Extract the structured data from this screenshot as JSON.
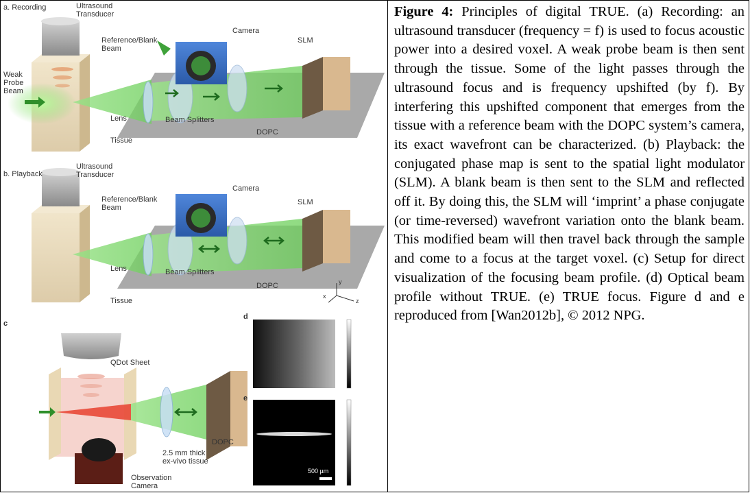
{
  "caption": {
    "label": "Figure 4:",
    "text": " Principles of digital TRUE. (a) Recording: an ultrasound transducer (frequency = f) is used to focus acoustic power into a desired voxel. A weak probe beam is then sent through the tissue. Some of the light passes through the ultrasound focus and is frequency upshifted (by f). By interfering this upshifted component that emerges from the tissue with a reference beam with the DOPC system’s camera, its exact wavefront can be characterized. (b) Playback: the conjugated phase map is sent to the spatial light modulator (SLM). A blank beam is then sent to the SLM and reflected off it. By doing this, the SLM will ‘imprint’ a phase conjugate (or time-reversed) wavefront variation onto the blank beam. This modified beam will then travel back through the sample and come to a focus at the target voxel. (c) Setup for direct visualization of the focusing beam profile. (d) Optical beam profile without TRUE. (e) TRUE focus. Figure d and e reproduced from [Wan2012b], © 2012 NPG."
  },
  "panel_a": {
    "label": "a. Recording",
    "transducer": "Ultrasound\nTransducer",
    "reference": "Reference/Blank\nBeam",
    "camera": "Camera",
    "slm": "SLM",
    "probe": "Weak\nProbe\nBeam",
    "lens": "Lens",
    "splitters": "Beam Splitters",
    "dopc": "DOPC",
    "tissue": "Tissue"
  },
  "panel_b": {
    "label": "b. Playback",
    "transducer": "Ultrasound\nTransducer",
    "reference": "Reference/Blank\nBeam",
    "camera": "Camera",
    "slm": "SLM",
    "lens": "Lens",
    "splitters": "Beam Splitters",
    "dopc": "DOPC",
    "tissue": "Tissue",
    "axis_x": "x",
    "axis_y": "y",
    "axis_z": "z"
  },
  "panel_c": {
    "label": "c",
    "qdot": "QDot Sheet",
    "dopc": "DOPC",
    "tissue": "2.5 mm thick\nex-vivo tissue",
    "camera": "Observation\nCamera"
  },
  "panel_d": {
    "label": "d"
  },
  "panel_e": {
    "label": "e",
    "scalebar": "500 µm"
  },
  "colors": {
    "beam": "#7fd86a",
    "tissue": "#e8d9b8",
    "camera_body": "#3a6fc8",
    "slm": "#d8b890",
    "dopc_table": "#b0b0b0"
  }
}
